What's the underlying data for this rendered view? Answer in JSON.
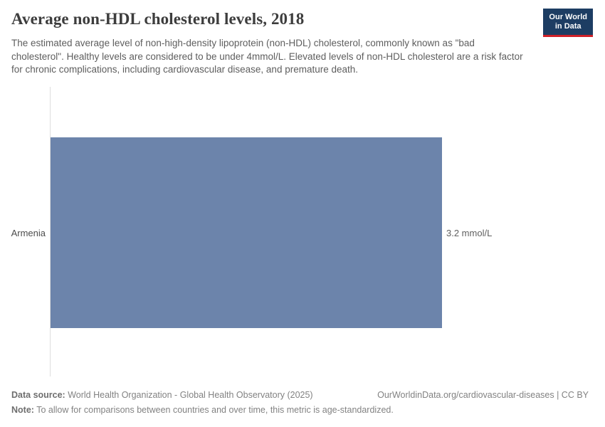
{
  "header": {
    "title": "Average non-HDL cholesterol levels, 2018",
    "subtitle": "The estimated average level of non-high-density lipoprotein (non-HDL) cholesterol, commonly known as \"bad cholesterol\". Healthy levels are considered to be under 4mmol/L. Elevated levels of non-HDL cholesterol are a risk factor for chronic complications, including cardiovascular disease, and premature death.",
    "logo": {
      "line1": "Our World",
      "line2": "in Data"
    }
  },
  "chart_data": {
    "type": "bar",
    "orientation": "horizontal",
    "categories": [
      "Armenia"
    ],
    "values": [
      3.2
    ],
    "value_labels": [
      "3.2 mmol/L"
    ],
    "unit": "mmol/L",
    "title": "Average non-HDL cholesterol levels, 2018",
    "xlim": [
      0,
      3.2
    ],
    "grid": false,
    "legend": false,
    "bar_color": "#6c84ab"
  },
  "footer": {
    "data_source_label": "Data source:",
    "data_source": "World Health Organization - Global Health Observatory (2025)",
    "url": "OurWorldinData.org/cardiovascular-diseases | CC BY",
    "note_label": "Note:",
    "note": "To allow for comparisons between countries and over time, this metric is age-standardized."
  },
  "colors": {
    "bar": "#6c84ab",
    "logo_background": "#1d3d63",
    "logo_accent": "#cf2128",
    "axis_line": "#dedede"
  }
}
